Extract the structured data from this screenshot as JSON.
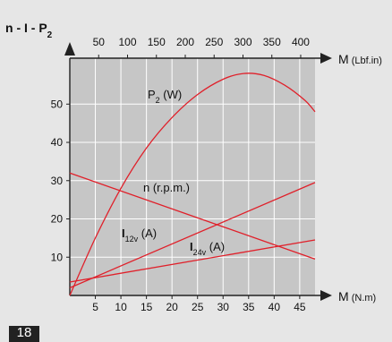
{
  "page_number": "18",
  "chart_data": {
    "type": "line",
    "title": "n - I - P2",
    "title_main": "n - I - P",
    "title_sub": "2",
    "grid": true,
    "background": "#c6c6c6",
    "line_color": "#e0202a",
    "x": {
      "label": "M",
      "unit": "(N.m)",
      "range": [
        0,
        48
      ],
      "ticks": [
        5,
        10,
        15,
        20,
        25,
        30,
        35,
        40,
        45
      ]
    },
    "x_top": {
      "label": "M",
      "unit": "(Lbf.in)",
      "ticks": [
        50,
        100,
        150,
        200,
        250,
        300,
        350,
        400
      ]
    },
    "y": {
      "range": [
        0,
        62
      ],
      "ticks": [
        10,
        20,
        30,
        40,
        50
      ]
    },
    "series": [
      {
        "name": "P2 (W)",
        "label_main": "P",
        "label_sub": "2",
        "label_rest": " (W)",
        "x": [
          0,
          5,
          10,
          15,
          20,
          25,
          30,
          34,
          38,
          42,
          46,
          48
        ],
        "y": [
          0,
          15,
          28,
          38.5,
          46.5,
          52.5,
          56.5,
          58,
          57.5,
          55,
          51,
          48
        ]
      },
      {
        "name": "n (r.p.m.)",
        "label_main": "n (r.p.m.)",
        "label_sub": "",
        "label_rest": "",
        "x": [
          0,
          48
        ],
        "y": [
          32,
          9.5
        ]
      },
      {
        "name": "I12v (A)",
        "label_main": "I",
        "label_sub": "12v",
        "label_rest": " (A)",
        "x": [
          0,
          48
        ],
        "y": [
          2,
          29.5
        ]
      },
      {
        "name": "I24v (A)",
        "label_main": "I",
        "label_sub": "24v",
        "label_rest": " (A)",
        "x": [
          0,
          48
        ],
        "y": [
          3.5,
          14.5
        ]
      }
    ]
  }
}
